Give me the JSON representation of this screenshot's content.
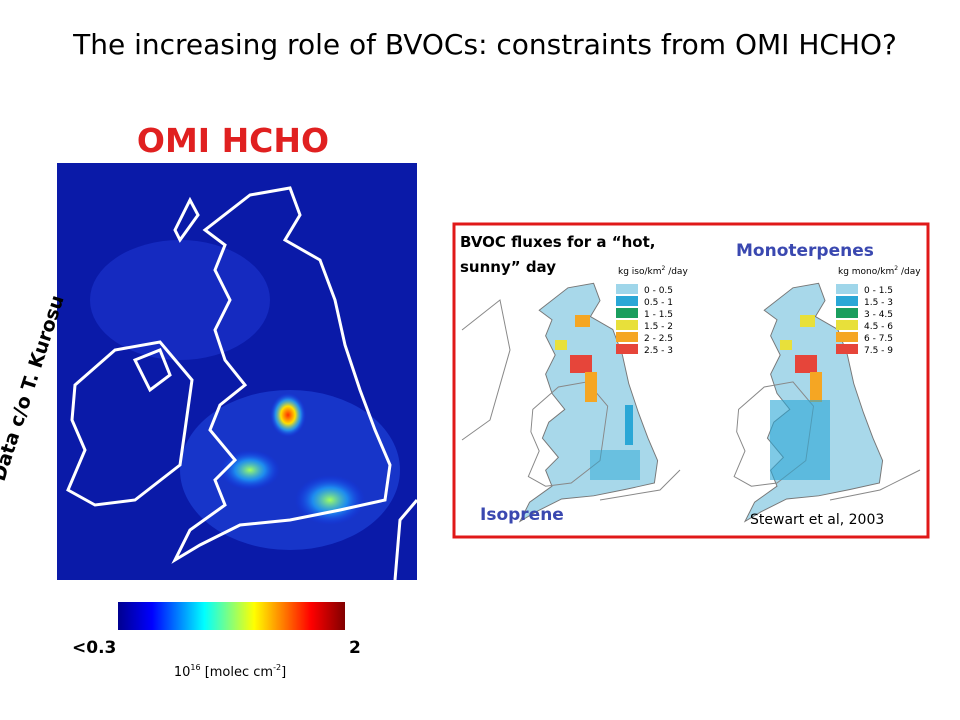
{
  "header": {
    "title": "The increasing role of BVOCs: constraints from OMI HCHO?"
  },
  "left_panel": {
    "heading": "OMI HCHO",
    "credit": "Data c/o T. Kurosu",
    "colorbar": {
      "min_label": "<0.3",
      "max_label": "2",
      "unit": {
        "base": "10",
        "exponent": "16",
        "text": " [molec cm",
        "unit_exponent": "-2",
        "close": "]"
      }
    }
  },
  "right_panel": {
    "caption_line1": "BVOC fluxes for a “hot,",
    "caption_line2": "sunny” day",
    "monoterpenes_label": "Monoterpenes",
    "isoprene_label": "Isoprene",
    "citation": "Stewart et al, 2003",
    "isoprene_legend": {
      "unit": {
        "text": "kg iso/km",
        "exponent": "2",
        "suffix": " /day"
      },
      "entries": [
        "0 - 0.5",
        "0.5 - 1",
        "1 - 1.5",
        "1.5 - 2",
        "2 - 2.5",
        "2.5 - 3"
      ]
    },
    "monoterpene_legend": {
      "unit": {
        "text": "kg mono/km",
        "exponent": "2",
        "suffix": " /day"
      },
      "entries": [
        "0 - 1.5",
        "1.5 - 3",
        "3 - 4.5",
        "4.5 - 6",
        "6 - 7.5",
        "7.5 - 9"
      ]
    }
  }
}
